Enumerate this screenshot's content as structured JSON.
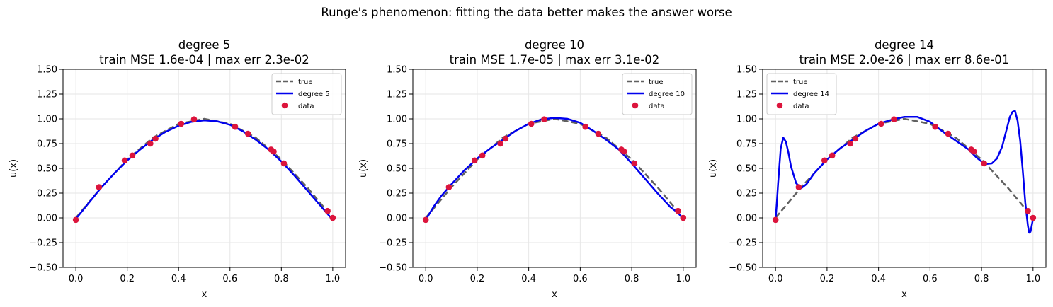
{
  "suptitle": "Runge's phenomenon: fitting the data better makes the answer worse",
  "colors": {
    "true": "#606060",
    "fit": "#0000ee",
    "data": "#dc143c",
    "grid": "#e6e6e6"
  },
  "chart_data": [
    {
      "type": "line",
      "title": "degree 5",
      "subtitle": "train MSE 1.6e-04 | max err 2.3e-02",
      "xlabel": "x",
      "ylabel": "u(x)",
      "xlim": [
        -0.05,
        1.05
      ],
      "ylim": [
        -0.5,
        1.5
      ],
      "xticks": [
        "0.0",
        "0.2",
        "0.4",
        "0.6",
        "0.8",
        "1.0"
      ],
      "yticks": [
        "1.50",
        "1.25",
        "1.00",
        "0.75",
        "0.50",
        "0.25",
        "0.00",
        "-0.25",
        "-0.50"
      ],
      "grid": true,
      "legend_position": "top-right",
      "series": [
        {
          "name": "true",
          "style": "dashed",
          "x": [
            0,
            0.1,
            0.2,
            0.3,
            0.4,
            0.5,
            0.6,
            0.7,
            0.8,
            0.9,
            1.0
          ],
          "y": [
            0,
            0.31,
            0.59,
            0.81,
            0.95,
            1.0,
            0.95,
            0.81,
            0.59,
            0.31,
            0
          ]
        },
        {
          "name": "degree 5",
          "style": "solid",
          "x": [
            0,
            0.05,
            0.1,
            0.15,
            0.2,
            0.25,
            0.3,
            0.35,
            0.4,
            0.45,
            0.5,
            0.55,
            0.6,
            0.65,
            0.7,
            0.75,
            0.8,
            0.85,
            0.9,
            0.95,
            1.0
          ],
          "y": [
            -0.01,
            0.15,
            0.31,
            0.45,
            0.58,
            0.69,
            0.79,
            0.87,
            0.93,
            0.97,
            0.985,
            0.975,
            0.94,
            0.875,
            0.79,
            0.69,
            0.57,
            0.43,
            0.28,
            0.13,
            -0.02
          ]
        },
        {
          "name": "data",
          "style": "markers",
          "x": [
            0.0,
            0.09,
            0.19,
            0.22,
            0.29,
            0.31,
            0.41,
            0.46,
            0.62,
            0.67,
            0.76,
            0.77,
            0.81,
            0.98,
            1.0
          ],
          "y": [
            -0.02,
            0.31,
            0.58,
            0.63,
            0.75,
            0.8,
            0.95,
            0.995,
            0.92,
            0.85,
            0.69,
            0.67,
            0.55,
            0.07,
            0.0
          ]
        }
      ]
    },
    {
      "type": "line",
      "title": "degree 10",
      "subtitle": "train MSE 1.7e-05 | max err 3.1e-02",
      "xlabel": "x",
      "ylabel": "u(x)",
      "xlim": [
        -0.05,
        1.05
      ],
      "ylim": [
        -0.5,
        1.5
      ],
      "xticks": [
        "0.0",
        "0.2",
        "0.4",
        "0.6",
        "0.8",
        "1.0"
      ],
      "yticks": [
        "1.50",
        "1.25",
        "1.00",
        "0.75",
        "0.50",
        "0.25",
        "0.00",
        "-0.25",
        "-0.50"
      ],
      "grid": true,
      "legend_position": "top-right",
      "series": [
        {
          "name": "true",
          "style": "dashed",
          "x": [
            0,
            0.1,
            0.2,
            0.3,
            0.4,
            0.5,
            0.6,
            0.7,
            0.8,
            0.9,
            1.0
          ],
          "y": [
            0,
            0.31,
            0.59,
            0.81,
            0.95,
            1.0,
            0.95,
            0.81,
            0.59,
            0.31,
            0
          ]
        },
        {
          "name": "degree 10",
          "style": "solid",
          "x": [
            0,
            0.03,
            0.06,
            0.1,
            0.15,
            0.2,
            0.25,
            0.3,
            0.35,
            0.4,
            0.45,
            0.5,
            0.55,
            0.6,
            0.65,
            0.7,
            0.75,
            0.8,
            0.85,
            0.9,
            0.95,
            0.98,
            1.0
          ],
          "y": [
            -0.02,
            0.11,
            0.22,
            0.34,
            0.48,
            0.6,
            0.7,
            0.79,
            0.88,
            0.95,
            0.995,
            1.01,
            1.0,
            0.96,
            0.88,
            0.79,
            0.69,
            0.55,
            0.4,
            0.25,
            0.11,
            0.05,
            -0.01
          ]
        },
        {
          "name": "data",
          "style": "markers",
          "x": [
            0.0,
            0.09,
            0.19,
            0.22,
            0.29,
            0.31,
            0.41,
            0.46,
            0.62,
            0.67,
            0.76,
            0.77,
            0.81,
            0.98,
            1.0
          ],
          "y": [
            -0.02,
            0.31,
            0.58,
            0.63,
            0.75,
            0.8,
            0.95,
            0.995,
            0.92,
            0.85,
            0.69,
            0.67,
            0.55,
            0.07,
            0.0
          ]
        }
      ]
    },
    {
      "type": "line",
      "title": "degree 14",
      "subtitle": "train MSE 2.0e-26 | max err 8.6e-01",
      "xlabel": "x",
      "ylabel": "u(x)",
      "xlim": [
        -0.05,
        1.05
      ],
      "ylim": [
        -0.5,
        1.5
      ],
      "xticks": [
        "0.0",
        "0.2",
        "0.4",
        "0.6",
        "0.8",
        "1.0"
      ],
      "yticks": [
        "1.50",
        "1.25",
        "1.00",
        "0.75",
        "0.50",
        "0.25",
        "0.00",
        "-0.25",
        "-0.50"
      ],
      "grid": true,
      "legend_position": "top-left",
      "series": [
        {
          "name": "true",
          "style": "dashed",
          "x": [
            0,
            0.1,
            0.2,
            0.3,
            0.4,
            0.5,
            0.6,
            0.7,
            0.8,
            0.9,
            1.0
          ],
          "y": [
            0,
            0.31,
            0.59,
            0.81,
            0.95,
            1.0,
            0.95,
            0.81,
            0.59,
            0.31,
            0
          ]
        },
        {
          "name": "degree 14",
          "style": "solid",
          "x": [
            0,
            0.005,
            0.01,
            0.02,
            0.03,
            0.04,
            0.05,
            0.06,
            0.08,
            0.1,
            0.12,
            0.15,
            0.2,
            0.25,
            0.3,
            0.35,
            0.4,
            0.45,
            0.5,
            0.55,
            0.6,
            0.65,
            0.7,
            0.75,
            0.78,
            0.8,
            0.82,
            0.84,
            0.86,
            0.88,
            0.9,
            0.91,
            0.92,
            0.93,
            0.94,
            0.95,
            0.96,
            0.97,
            0.98,
            0.985,
            0.99,
            1.0
          ],
          "y": [
            -0.02,
            0.15,
            0.35,
            0.7,
            0.81,
            0.77,
            0.66,
            0.52,
            0.35,
            0.3,
            0.34,
            0.45,
            0.59,
            0.7,
            0.79,
            0.88,
            0.95,
            0.99,
            1.02,
            1.02,
            0.97,
            0.87,
            0.78,
            0.69,
            0.61,
            0.57,
            0.545,
            0.55,
            0.6,
            0.72,
            0.92,
            1.02,
            1.07,
            1.08,
            0.98,
            0.78,
            0.48,
            0.15,
            -0.08,
            -0.15,
            -0.14,
            -0.01
          ]
        },
        {
          "name": "data",
          "style": "markers",
          "x": [
            0.0,
            0.09,
            0.19,
            0.22,
            0.29,
            0.31,
            0.41,
            0.46,
            0.62,
            0.67,
            0.76,
            0.77,
            0.81,
            0.98,
            1.0
          ],
          "y": [
            -0.02,
            0.31,
            0.58,
            0.63,
            0.75,
            0.8,
            0.95,
            0.995,
            0.92,
            0.85,
            0.69,
            0.67,
            0.55,
            0.07,
            0.0
          ]
        }
      ]
    }
  ]
}
